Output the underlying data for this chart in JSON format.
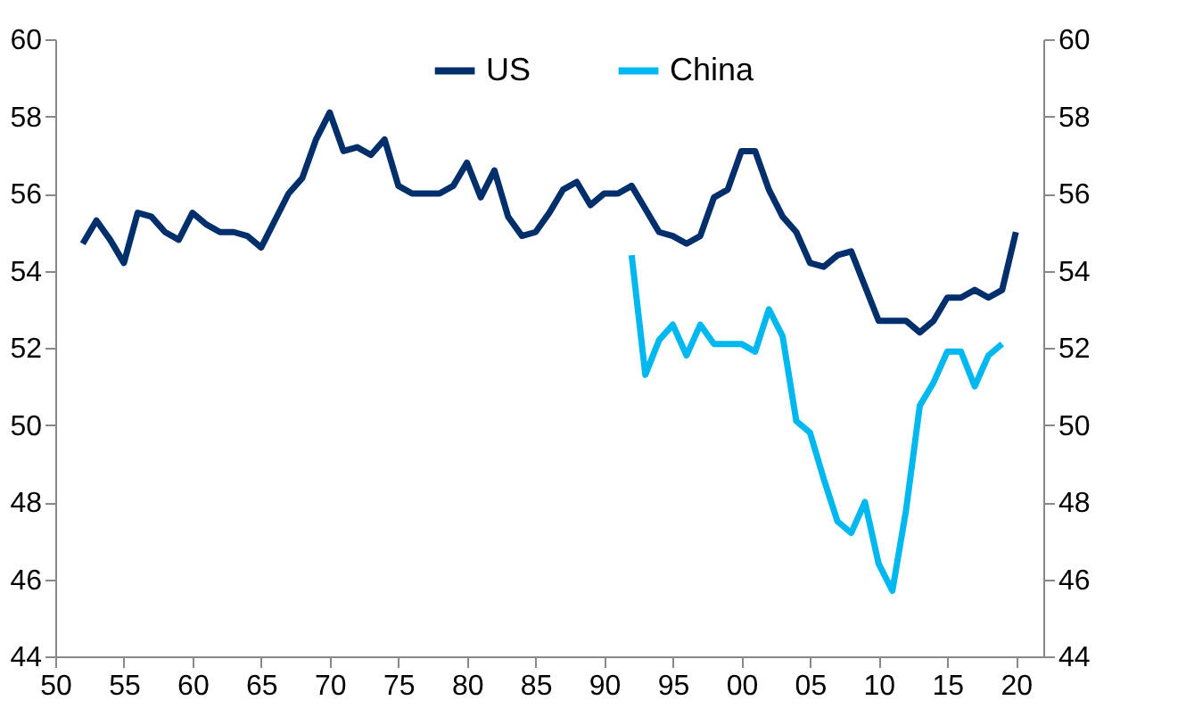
{
  "chart_data": {
    "type": "line",
    "x": [
      1952,
      1953,
      1954,
      1955,
      1956,
      1957,
      1958,
      1959,
      1960,
      1961,
      1962,
      1963,
      1964,
      1965,
      1966,
      1967,
      1968,
      1969,
      1970,
      1971,
      1972,
      1973,
      1974,
      1975,
      1976,
      1977,
      1978,
      1979,
      1980,
      1981,
      1982,
      1983,
      1984,
      1985,
      1986,
      1987,
      1988,
      1989,
      1990,
      1991,
      1992,
      1993,
      1994,
      1995,
      1996,
      1997,
      1998,
      1999,
      2000,
      2001,
      2002,
      2003,
      2004,
      2005,
      2006,
      2007,
      2008,
      2009,
      2010,
      2011,
      2012,
      2013,
      2014,
      2015,
      2016,
      2017,
      2018,
      2019,
      2020
    ],
    "series": [
      {
        "name": "US",
        "color": "#002f6c",
        "values": [
          54.7,
          55.3,
          54.8,
          54.2,
          55.5,
          55.4,
          55.0,
          54.8,
          55.5,
          55.2,
          55.0,
          55.0,
          54.9,
          54.6,
          55.3,
          56.0,
          56.4,
          57.4,
          58.1,
          57.1,
          57.2,
          57.0,
          57.4,
          56.2,
          56.0,
          56.0,
          56.0,
          56.2,
          56.8,
          55.9,
          56.6,
          55.4,
          54.9,
          55.0,
          55.5,
          56.1,
          56.3,
          55.7,
          56.0,
          56.0,
          56.2,
          55.6,
          55.0,
          54.9,
          54.7,
          54.9,
          55.9,
          56.1,
          57.1,
          57.1,
          56.1,
          55.4,
          55.0,
          54.2,
          54.1,
          54.4,
          54.5,
          53.6,
          52.7,
          52.7,
          52.7,
          52.4,
          52.7,
          53.3,
          53.3,
          53.5,
          53.3,
          53.5,
          55.0
        ]
      },
      {
        "name": "China",
        "color": "#00b8f0",
        "values": [
          null,
          null,
          null,
          null,
          null,
          null,
          null,
          null,
          null,
          null,
          null,
          null,
          null,
          null,
          null,
          null,
          null,
          null,
          null,
          null,
          null,
          null,
          null,
          null,
          null,
          null,
          null,
          null,
          null,
          null,
          null,
          null,
          null,
          null,
          null,
          null,
          null,
          null,
          null,
          null,
          54.4,
          51.3,
          52.2,
          52.6,
          51.8,
          52.6,
          52.1,
          52.1,
          52.1,
          51.9,
          53.0,
          52.3,
          50.1,
          49.8,
          48.6,
          47.5,
          47.2,
          48.0,
          46.4,
          45.7,
          47.8,
          50.5,
          51.1,
          51.9,
          51.9,
          51.0,
          51.8,
          52.1,
          null
        ]
      }
    ],
    "xlim": [
      1950,
      2022
    ],
    "xticks": [
      {
        "value": 1950,
        "label": "50"
      },
      {
        "value": 1955,
        "label": "55"
      },
      {
        "value": 1960,
        "label": "60"
      },
      {
        "value": 1965,
        "label": "65"
      },
      {
        "value": 1970,
        "label": "70"
      },
      {
        "value": 1975,
        "label": "75"
      },
      {
        "value": 1980,
        "label": "80"
      },
      {
        "value": 1985,
        "label": "85"
      },
      {
        "value": 1990,
        "label": "90"
      },
      {
        "value": 1995,
        "label": "95"
      },
      {
        "value": 2000,
        "label": "00"
      },
      {
        "value": 2005,
        "label": "05"
      },
      {
        "value": 2010,
        "label": "10"
      },
      {
        "value": 2015,
        "label": "15"
      },
      {
        "value": 2020,
        "label": "20"
      }
    ],
    "ylim": [
      44,
      60
    ],
    "yticks": [
      44,
      46,
      48,
      50,
      52,
      54,
      56,
      58,
      60
    ],
    "y2lim": [
      44,
      60
    ],
    "y2ticks": [
      44,
      46,
      48,
      50,
      52,
      54,
      56,
      58,
      60
    ],
    "grid": false,
    "legend": "top",
    "marker": "none",
    "line_style": "solid"
  }
}
